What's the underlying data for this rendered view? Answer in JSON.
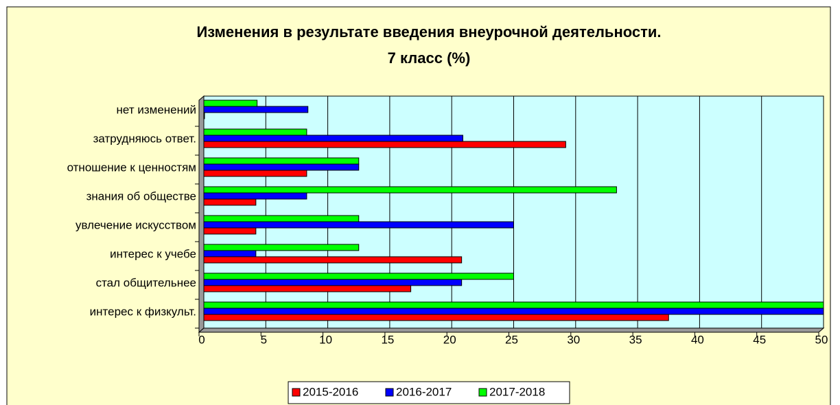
{
  "chart_data": {
    "type": "bar",
    "orientation": "horizontal",
    "title": [
      "Изменения в результате введения внеурочной деятельности.",
      "7  класс (%)"
    ],
    "categories": [
      "интерес к физкульт.",
      "стал общительнее",
      "интерес к учебе",
      "увлечение искусством",
      "знания об обществе",
      "отношение к ценностям",
      "затрудняюсь ответ.",
      "нет изменений"
    ],
    "series": [
      {
        "name": "2015-2016",
        "color": "#ff0000",
        "values": [
          37.5,
          16.7,
          20.8,
          4.2,
          4.2,
          8.3,
          29.2,
          0
        ]
      },
      {
        "name": "2016-2017",
        "color": "#0000ff",
        "values": [
          50,
          20.8,
          4.2,
          25,
          8.3,
          12.5,
          20.9,
          8.4
        ]
      },
      {
        "name": "2017-2018",
        "color": "#00ff00",
        "values": [
          50,
          25,
          12.5,
          12.5,
          33.3,
          12.5,
          8.3,
          4.3
        ]
      }
    ],
    "xlim": [
      0,
      50
    ],
    "xticks": [
      0,
      5,
      10,
      15,
      20,
      25,
      30,
      35,
      40,
      45,
      50
    ],
    "grid": true,
    "legend": "bottom"
  }
}
